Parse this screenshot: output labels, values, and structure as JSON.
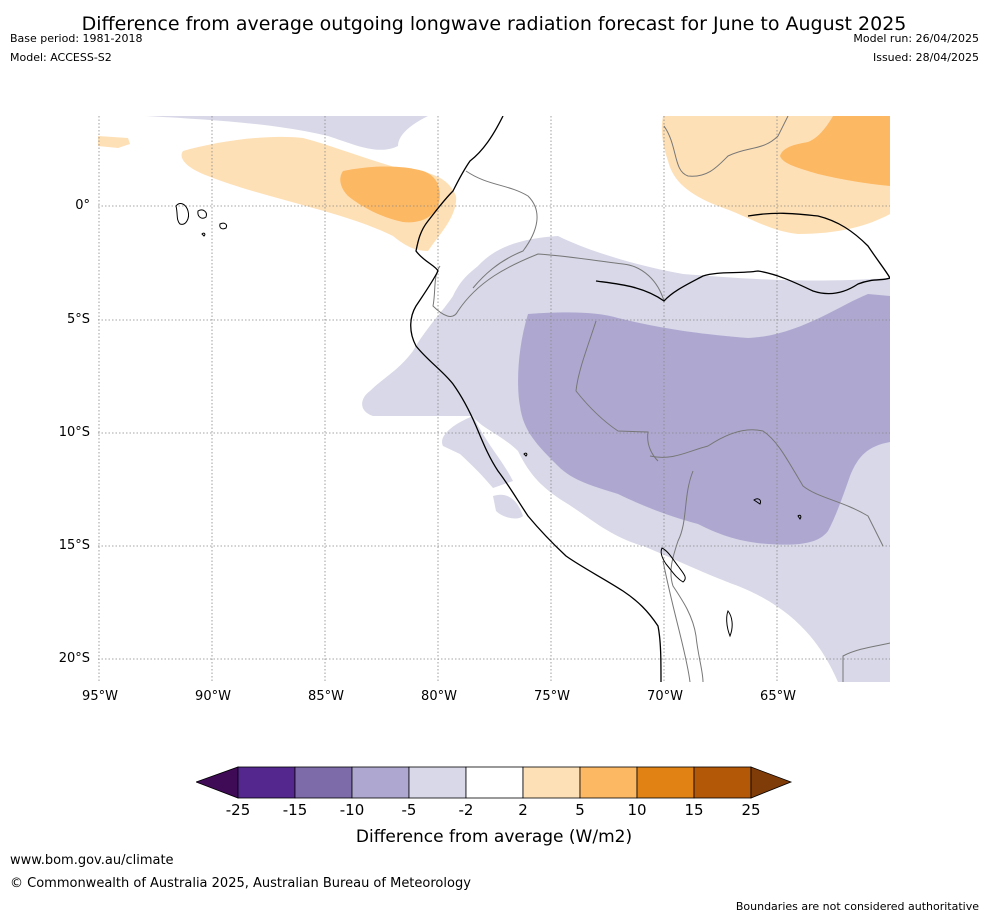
{
  "title": "Difference from average outgoing longwave radiation forecast for June to August 2025",
  "meta_left": {
    "base_period": "Base period: 1981-2018",
    "model": "Model: ACCESS-S2"
  },
  "meta_right": {
    "model_run": "Model run: 26/04/2025",
    "issued": "Issued: 28/04/2025"
  },
  "map": {
    "lat_labels": [
      "0°",
      "5°S",
      "10°S",
      "15°S",
      "20°S"
    ],
    "lon_labels": [
      "95°W",
      "90°W",
      "85°W",
      "80°W",
      "75°W",
      "70°W",
      "65°W"
    ],
    "lon_range": [
      -95,
      -60
    ],
    "lat_range": [
      -21,
      4
    ]
  },
  "colorbar": {
    "ticks": [
      "-25",
      "-15",
      "-10",
      "-5",
      "-2",
      "2",
      "5",
      "10",
      "15",
      "25"
    ],
    "colors": [
      "#3f0a56",
      "#54278f",
      "#7d6ba9",
      "#aea8d0",
      "#d8d8e8",
      "#ffffff",
      "#fee0b6",
      "#fdb863",
      "#e08214",
      "#b35806",
      "#7f3b08"
    ],
    "label": "Difference from average (W/m2)"
  },
  "footer": {
    "url": "www.bom.gov.au/climate",
    "copyright": "© Commonwealth of Australia 2025, Australian Bureau of Meteorology",
    "disclaimer": "Boundaries are not considered authoritative"
  }
}
